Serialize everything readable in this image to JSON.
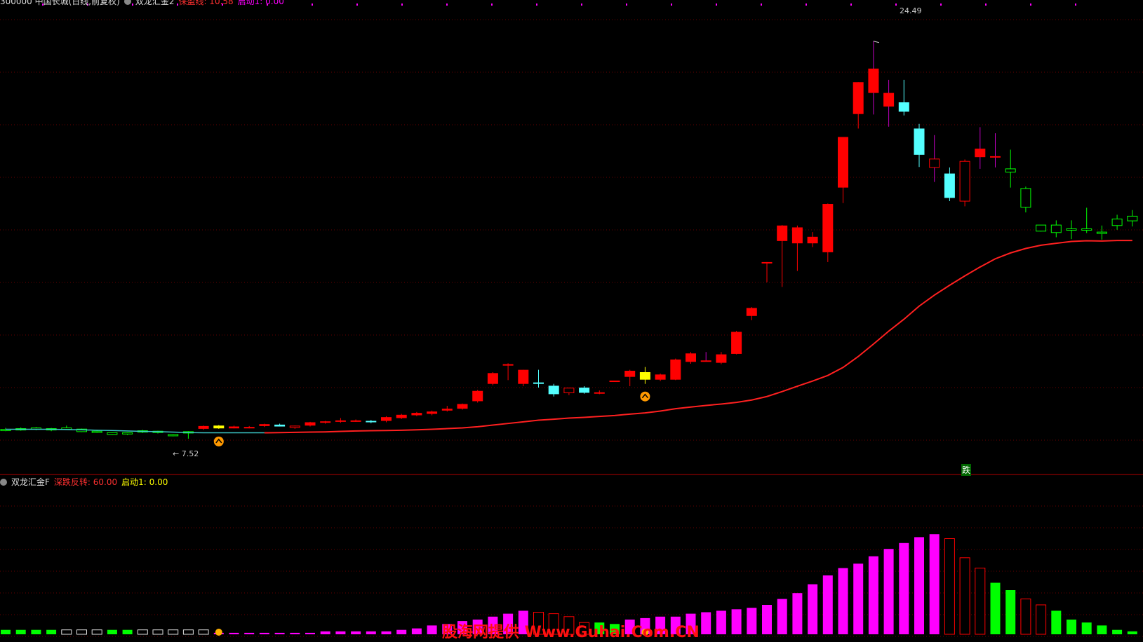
{
  "header": {
    "stock_title": "300000 中国长城(日线,前复权)",
    "indicator_name": "双龙汇金2",
    "indicator_line_label": "保盈线: 10.58",
    "indicator_start_label": "启动1: 0.00"
  },
  "indicator_header": {
    "name": "双龙汇金F",
    "deep_reversal_label": "深跌反转: 60.00",
    "start_label": "启动1: 0.00"
  },
  "annotations": {
    "high_price": "24.49",
    "low_price": "7.52",
    "fall_label": "跌"
  },
  "watermark": "股海网提供 Www.Guhai.Com.CN",
  "colors": {
    "background": "#000000",
    "up": "#ff0000",
    "down_cyan": "#54ffff",
    "yellow": "#ffff00",
    "green": "#00ff00",
    "ma_line": "#ff2020",
    "ma_line_early": "#3cc8c8",
    "magenta": "#ff00ff",
    "grid": "#6a0000"
  },
  "chart_data": [
    {
      "type": "candlestick",
      "title": "",
      "ylim": [
        6.5,
        25.5
      ],
      "candles": [
        {
          "o": 7.9,
          "h": 7.98,
          "l": 7.84,
          "c": 7.92,
          "color": "green"
        },
        {
          "o": 7.92,
          "h": 8.0,
          "l": 7.86,
          "c": 7.95,
          "color": "green"
        },
        {
          "o": 7.94,
          "h": 8.02,
          "l": 7.88,
          "c": 7.98,
          "color": "green"
        },
        {
          "o": 7.9,
          "h": 7.98,
          "l": 7.84,
          "c": 7.95,
          "color": "green"
        },
        {
          "o": 7.96,
          "h": 8.08,
          "l": 7.9,
          "c": 7.98,
          "color": "green"
        },
        {
          "o": 7.82,
          "h": 7.95,
          "l": 7.8,
          "c": 7.93,
          "color": "green"
        },
        {
          "o": 7.84,
          "h": 7.9,
          "l": 7.76,
          "c": 7.84,
          "color": "green"
        },
        {
          "o": 7.7,
          "h": 7.8,
          "l": 7.68,
          "c": 7.78,
          "color": "green"
        },
        {
          "o": 7.72,
          "h": 7.8,
          "l": 7.68,
          "c": 7.78,
          "color": "green"
        },
        {
          "o": 7.8,
          "h": 7.9,
          "l": 7.76,
          "c": 7.86,
          "color": "green"
        },
        {
          "o": 7.78,
          "h": 7.86,
          "l": 7.74,
          "c": 7.84,
          "color": "green"
        },
        {
          "o": 7.68,
          "h": 7.72,
          "l": 7.62,
          "c": 7.7,
          "color": "green"
        },
        {
          "o": 7.76,
          "h": 7.84,
          "l": 7.52,
          "c": 7.82,
          "color": "green"
        },
        {
          "o": 7.94,
          "h": 8.08,
          "l": 7.9,
          "c": 8.06,
          "color": "red"
        },
        {
          "o": 7.96,
          "h": 8.1,
          "l": 7.94,
          "c": 8.08,
          "color": "yellow"
        },
        {
          "o": 8.04,
          "h": 8.08,
          "l": 7.96,
          "c": 7.96,
          "color": "red"
        },
        {
          "o": 8.02,
          "h": 8.06,
          "l": 7.96,
          "c": 8.0,
          "color": "red"
        },
        {
          "o": 8.06,
          "h": 8.16,
          "l": 8.02,
          "c": 8.14,
          "color": "red"
        },
        {
          "o": 8.12,
          "h": 8.16,
          "l": 8.04,
          "c": 8.04,
          "color": "cyan"
        },
        {
          "o": 8.0,
          "h": 8.08,
          "l": 7.94,
          "c": 8.06,
          "color": "red_hollow"
        },
        {
          "o": 8.08,
          "h": 8.24,
          "l": 8.04,
          "c": 8.22,
          "color": "red"
        },
        {
          "o": 8.2,
          "h": 8.28,
          "l": 8.16,
          "c": 8.26,
          "color": "red"
        },
        {
          "o": 8.26,
          "h": 8.4,
          "l": 8.2,
          "c": 8.3,
          "color": "red"
        },
        {
          "o": 8.3,
          "h": 8.34,
          "l": 8.24,
          "c": 8.28,
          "color": "red"
        },
        {
          "o": 8.28,
          "h": 8.32,
          "l": 8.18,
          "c": 8.22,
          "color": "cyan"
        },
        {
          "o": 8.28,
          "h": 8.48,
          "l": 8.22,
          "c": 8.44,
          "color": "red"
        },
        {
          "o": 8.4,
          "h": 8.58,
          "l": 8.36,
          "c": 8.54,
          "color": "red"
        },
        {
          "o": 8.52,
          "h": 8.66,
          "l": 8.48,
          "c": 8.62,
          "color": "red"
        },
        {
          "o": 8.58,
          "h": 8.72,
          "l": 8.52,
          "c": 8.68,
          "color": "red"
        },
        {
          "o": 8.72,
          "h": 8.92,
          "l": 8.68,
          "c": 8.8,
          "color": "red"
        },
        {
          "o": 8.8,
          "h": 9.02,
          "l": 8.76,
          "c": 9.0,
          "color": "red"
        },
        {
          "o": 9.12,
          "h": 9.6,
          "l": 9.06,
          "c": 9.56,
          "color": "red"
        },
        {
          "o": 9.86,
          "h": 10.36,
          "l": 9.8,
          "c": 10.32,
          "color": "red"
        },
        {
          "o": 10.7,
          "h": 10.74,
          "l": 10.02,
          "c": 10.66,
          "color": "red"
        },
        {
          "o": 10.46,
          "h": 10.46,
          "l": 9.76,
          "c": 9.86,
          "color": "red"
        },
        {
          "o": 9.92,
          "h": 10.46,
          "l": 9.7,
          "c": 9.92,
          "color": "cyan"
        },
        {
          "o": 9.78,
          "h": 9.86,
          "l": 9.32,
          "c": 9.42,
          "color": "cyan"
        },
        {
          "o": 9.48,
          "h": 9.7,
          "l": 9.38,
          "c": 9.68,
          "color": "red_hollow"
        },
        {
          "o": 9.7,
          "h": 9.76,
          "l": 9.44,
          "c": 9.48,
          "color": "cyan"
        },
        {
          "o": 9.46,
          "h": 9.58,
          "l": 9.42,
          "c": 9.5,
          "color": "red"
        },
        {
          "o": 10.0,
          "h": 10.0,
          "l": 10.0,
          "c": 10.0,
          "color": "red"
        },
        {
          "o": 10.16,
          "h": 10.46,
          "l": 9.76,
          "c": 10.42,
          "color": "red"
        },
        {
          "o": 10.04,
          "h": 10.58,
          "l": 9.86,
          "c": 10.36,
          "color": "yellow"
        },
        {
          "o": 10.04,
          "h": 10.3,
          "l": 9.98,
          "c": 10.26,
          "color": "red"
        },
        {
          "o": 10.04,
          "h": 10.94,
          "l": 10.02,
          "c": 10.9,
          "color": "red"
        },
        {
          "o": 10.8,
          "h": 11.22,
          "l": 10.72,
          "c": 11.16,
          "color": "red"
        },
        {
          "o": 10.86,
          "h": 11.22,
          "l": 10.82,
          "c": 10.82,
          "color": "red"
        },
        {
          "o": 10.76,
          "h": 11.22,
          "l": 10.7,
          "c": 11.12,
          "color": "red"
        },
        {
          "o": 11.14,
          "h": 12.12,
          "l": 11.12,
          "c": 12.08,
          "color": "red"
        },
        {
          "o": 12.76,
          "h": 13.14,
          "l": 12.58,
          "c": 13.1,
          "color": "red"
        },
        {
          "o": 15.06,
          "h": 15.06,
          "l": 14.2,
          "c": 15.06,
          "color": "red"
        },
        {
          "o": 15.96,
          "h": 16.64,
          "l": 14.0,
          "c": 16.62,
          "color": "red"
        },
        {
          "o": 15.86,
          "h": 16.62,
          "l": 14.68,
          "c": 16.54,
          "color": "red"
        },
        {
          "o": 15.86,
          "h": 16.34,
          "l": 15.7,
          "c": 16.14,
          "color": "red"
        },
        {
          "o": 15.48,
          "h": 17.56,
          "l": 15.06,
          "c": 17.54,
          "color": "red"
        },
        {
          "o": 18.24,
          "h": 20.4,
          "l": 17.58,
          "c": 20.4,
          "color": "red"
        },
        {
          "o": 21.38,
          "h": 22.74,
          "l": 20.76,
          "c": 22.74,
          "color": "red"
        },
        {
          "o": 22.28,
          "h": 24.49,
          "l": 21.36,
          "c": 23.32,
          "color": "red"
        },
        {
          "o": 21.7,
          "h": 22.84,
          "l": 20.84,
          "c": 22.28,
          "color": "red"
        },
        {
          "o": 21.88,
          "h": 22.84,
          "l": 21.32,
          "c": 21.48,
          "color": "cyan"
        },
        {
          "o": 20.76,
          "h": 20.96,
          "l": 19.12,
          "c": 19.64,
          "color": "cyan"
        },
        {
          "o": 19.1,
          "h": 20.48,
          "l": 18.48,
          "c": 19.46,
          "color": "red_hollow"
        },
        {
          "o": 18.84,
          "h": 19.1,
          "l": 17.66,
          "c": 17.8,
          "color": "cyan"
        },
        {
          "o": 17.66,
          "h": 19.44,
          "l": 17.44,
          "c": 19.36,
          "color": "red_hollow"
        },
        {
          "o": 19.54,
          "h": 20.82,
          "l": 19.04,
          "c": 19.9,
          "color": "red"
        },
        {
          "o": 19.58,
          "h": 20.56,
          "l": 19.1,
          "c": 19.54,
          "color": "red"
        },
        {
          "o": 19.04,
          "h": 19.86,
          "l": 18.24,
          "c": 18.9,
          "color": "green"
        },
        {
          "o": 18.2,
          "h": 18.28,
          "l": 17.18,
          "c": 17.4,
          "color": "green"
        },
        {
          "o": 16.64,
          "h": 16.64,
          "l": 16.36,
          "c": 16.38,
          "color": "green"
        },
        {
          "o": 16.32,
          "h": 16.84,
          "l": 16.12,
          "c": 16.64,
          "color": "green"
        },
        {
          "o": 16.48,
          "h": 16.84,
          "l": 16.04,
          "c": 16.48,
          "color": "green"
        },
        {
          "o": 16.48,
          "h": 17.38,
          "l": 16.3,
          "c": 16.48,
          "color": "green"
        },
        {
          "o": 16.34,
          "h": 16.62,
          "l": 16.02,
          "c": 16.3,
          "color": "green"
        },
        {
          "o": 16.62,
          "h": 17.08,
          "l": 16.44,
          "c": 16.9,
          "color": "green"
        },
        {
          "o": 16.82,
          "h": 17.28,
          "l": 16.58,
          "c": 17.02,
          "color": "green"
        }
      ],
      "ma_values": [
        7.92,
        7.92,
        7.92,
        7.92,
        7.91,
        7.9,
        7.88,
        7.87,
        7.85,
        7.83,
        7.82,
        7.8,
        7.78,
        7.77,
        7.77,
        7.77,
        7.77,
        7.77,
        7.78,
        7.79,
        7.8,
        7.81,
        7.83,
        7.85,
        7.86,
        7.87,
        7.88,
        7.9,
        7.92,
        7.95,
        7.98,
        8.03,
        8.1,
        8.17,
        8.24,
        8.31,
        8.35,
        8.4,
        8.43,
        8.47,
        8.51,
        8.57,
        8.62,
        8.7,
        8.8,
        8.87,
        8.94,
        9.0,
        9.07,
        9.17,
        9.32,
        9.53,
        9.76,
        9.98,
        10.22,
        10.56,
        11.03,
        11.56,
        12.11,
        12.62,
        13.18,
        13.65,
        14.07,
        14.47,
        14.85,
        15.2,
        15.45,
        15.64,
        15.78,
        15.86,
        15.94,
        15.97,
        15.96,
        15.98,
        15.98
      ]
    },
    {
      "type": "bar",
      "title": "双龙汇金F",
      "ylim": [
        0,
        100
      ],
      "values": [
        3,
        3,
        3,
        3,
        3,
        3,
        3,
        3,
        3,
        3,
        3,
        3,
        3,
        3,
        1,
        1,
        1,
        1,
        1,
        1,
        1,
        2,
        2,
        2,
        2,
        2,
        3,
        4,
        6,
        7,
        9,
        10,
        12,
        14,
        16,
        15,
        14,
        12,
        8,
        8,
        7,
        10,
        11,
        12,
        12,
        14,
        15,
        16,
        17,
        18,
        20,
        24,
        28,
        34,
        40,
        45,
        48,
        53,
        58,
        62,
        66,
        68,
        65,
        52,
        45,
        35,
        30,
        24,
        20,
        16,
        10,
        8,
        6,
        3,
        2
      ],
      "styles": [
        "green",
        "green",
        "green",
        "green",
        "green_hollow",
        "green_hollow",
        "green_hollow",
        "green",
        "green",
        "green_hollow",
        "green_hollow",
        "green_hollow",
        "green_hollow",
        "green_hollow",
        "magenta",
        "magenta",
        "magenta",
        "magenta",
        "magenta",
        "magenta",
        "magenta",
        "magenta",
        "magenta",
        "magenta",
        "magenta",
        "magenta",
        "magenta",
        "magenta",
        "magenta",
        "magenta",
        "magenta",
        "magenta",
        "magenta",
        "magenta",
        "magenta",
        "red_hollow",
        "red_hollow",
        "red_hollow",
        "red_hollow",
        "green",
        "green",
        "magenta",
        "magenta",
        "magenta",
        "magenta",
        "magenta",
        "magenta",
        "magenta",
        "magenta",
        "magenta",
        "magenta",
        "magenta",
        "magenta",
        "magenta",
        "magenta",
        "magenta",
        "magenta",
        "magenta",
        "magenta",
        "magenta",
        "magenta",
        "magenta",
        "red_hollow",
        "red_hollow",
        "red_hollow",
        "green",
        "green",
        "red_hollow",
        "red_hollow",
        "green",
        "green",
        "green",
        "green",
        "green",
        "green"
      ]
    }
  ]
}
